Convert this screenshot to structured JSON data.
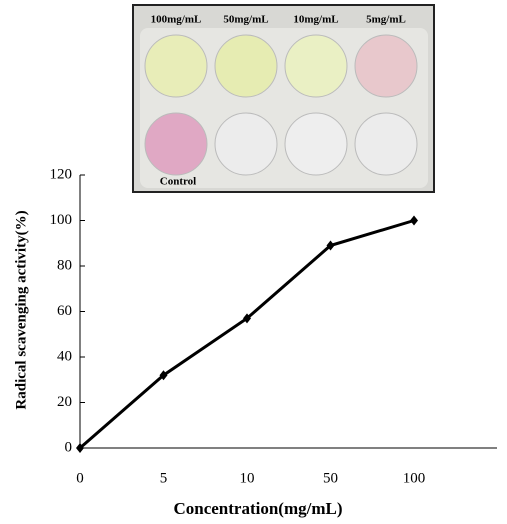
{
  "chart_data": {
    "type": "line",
    "x_label": "Concentration(mg/mL)",
    "y_label": "Radical  scavenging activity(%)",
    "categories": [
      "0",
      "5",
      "10",
      "50",
      "100"
    ],
    "values": [
      0,
      32,
      57,
      89,
      100
    ],
    "color": "#000000",
    "ylim": [
      0,
      120
    ],
    "yticks": [
      0,
      20,
      40,
      60,
      80,
      100,
      120
    ],
    "grid": false,
    "inset_labels": [
      "100mg/mL",
      "50mg/mL",
      "10mg/mL",
      "5mg/mL",
      "Control"
    ]
  }
}
